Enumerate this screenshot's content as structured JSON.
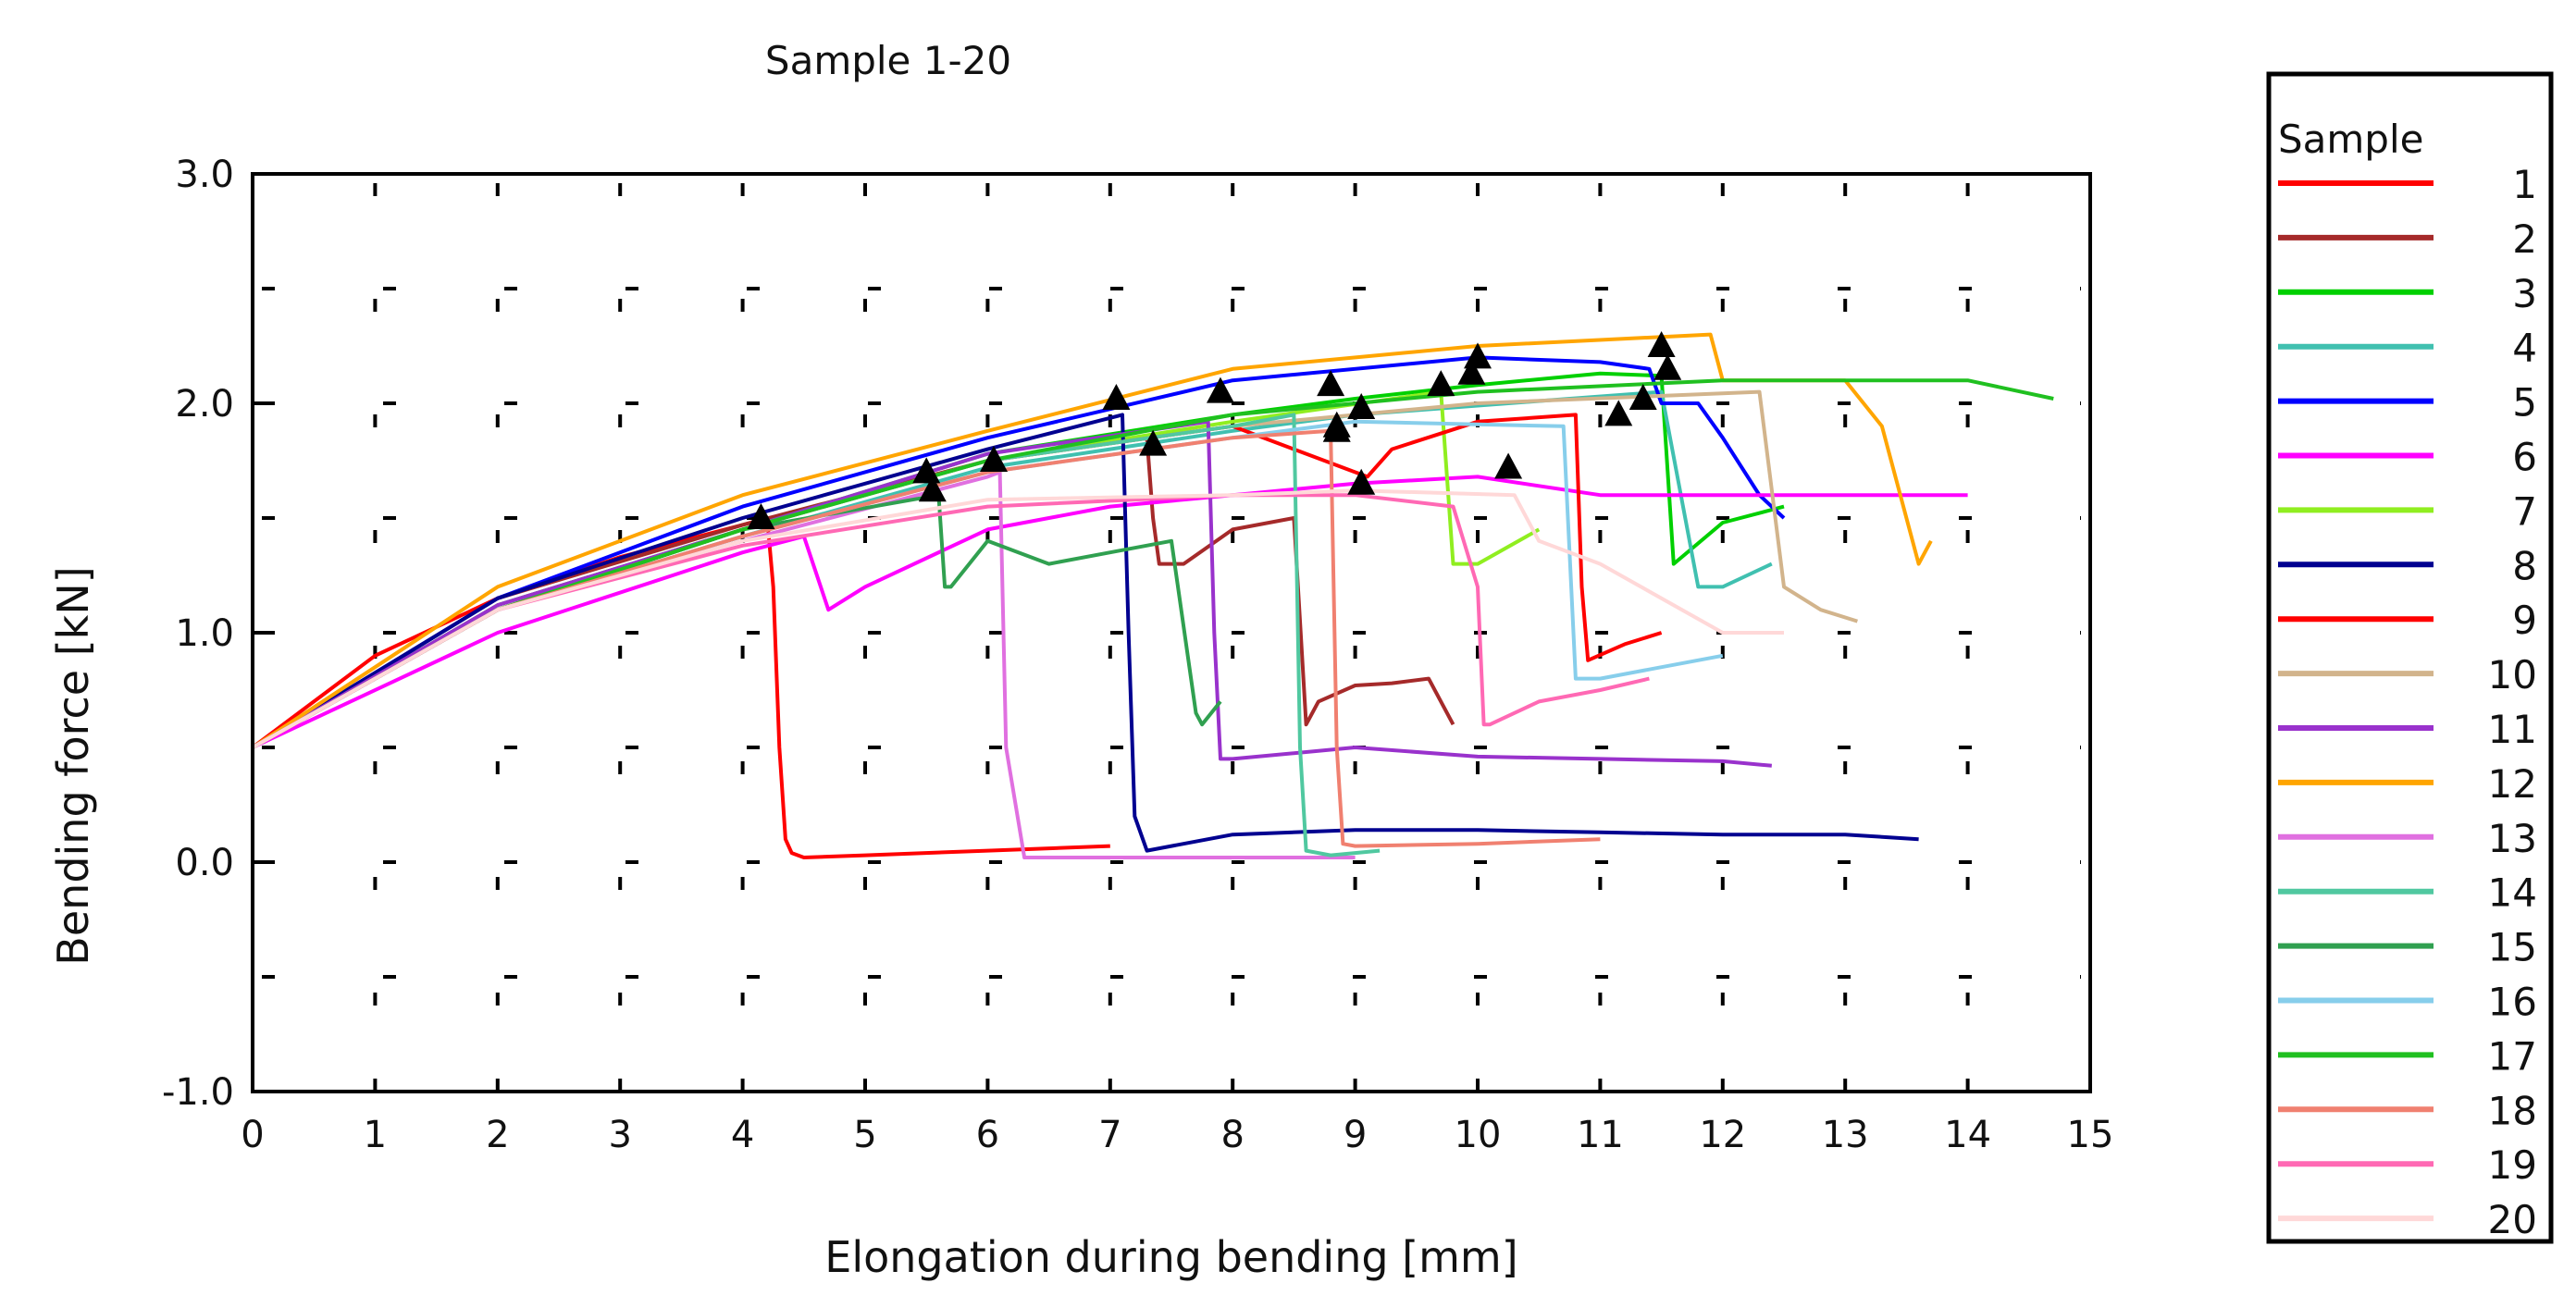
{
  "chart_data": {
    "type": "line",
    "title": "Sample 1-20",
    "xlabel": "Elongation during bending [mm]",
    "ylabel": "Bending force [kN]",
    "xlim": [
      0,
      15
    ],
    "ylim": [
      -1.0,
      3.0
    ],
    "x_ticks": [
      0,
      1,
      2,
      3,
      4,
      5,
      6,
      7,
      8,
      9,
      10,
      11,
      12,
      13,
      14,
      15
    ],
    "x_tick_labels": [
      "0",
      "1",
      "2",
      "3",
      "4",
      "5",
      "6",
      "7",
      "8",
      "9",
      "10",
      "11",
      "12",
      "13",
      "14",
      "15"
    ],
    "y_ticks": [
      -1.0,
      0.0,
      1.0,
      2.0,
      3.0
    ],
    "y_tick_labels": [
      "-1.0",
      "0.0",
      "1.0",
      "2.0",
      "3.0"
    ],
    "grid": "dotted",
    "legend": {
      "title": "Sample",
      "position": "right"
    },
    "series": [
      {
        "name": "1",
        "color": "#ff0000",
        "x": [
          0,
          1,
          2,
          3,
          4,
          4.2,
          4.25,
          4.3,
          4.35,
          4.4,
          4.5,
          5,
          6,
          7
        ],
        "y": [
          0.5,
          0.9,
          1.15,
          1.33,
          1.47,
          1.5,
          1.2,
          0.5,
          0.1,
          0.04,
          0.02,
          0.03,
          0.05,
          0.07
        ],
        "marker": [
          4.15,
          1.5
        ]
      },
      {
        "name": "2",
        "color": "#a52a2a",
        "x": [
          0,
          2,
          4,
          6,
          7.3,
          7.35,
          7.4,
          7.6,
          8,
          8.5,
          8.6,
          8.7,
          9,
          9.3,
          9.6,
          9.8
        ],
        "y": [
          0.5,
          1.15,
          1.47,
          1.75,
          1.85,
          1.5,
          1.3,
          1.3,
          1.45,
          1.5,
          0.6,
          0.7,
          0.77,
          0.78,
          0.8,
          0.6
        ],
        "marker": [
          7.35,
          1.82
        ]
      },
      {
        "name": "3",
        "color": "#00d000",
        "x": [
          0,
          2,
          4,
          6,
          8,
          9,
          10,
          11,
          11.5,
          11.6,
          12,
          12.5
        ],
        "y": [
          0.5,
          1.12,
          1.45,
          1.78,
          1.95,
          2.02,
          2.08,
          2.13,
          2.12,
          1.3,
          1.48,
          1.55
        ],
        "marker": [
          11.55,
          2.15
        ]
      },
      {
        "name": "4",
        "color": "#40c0b0",
        "x": [
          0,
          2,
          4,
          6,
          8,
          9,
          11.5,
          11.8,
          12,
          12.4
        ],
        "y": [
          0.5,
          1.1,
          1.42,
          1.72,
          1.88,
          1.95,
          2.05,
          1.2,
          1.2,
          1.3
        ],
        "marker": [
          11.35,
          2.02
        ]
      },
      {
        "name": "5",
        "color": "#0000ff",
        "x": [
          0,
          2,
          4,
          6,
          8,
          10,
          11,
          11.4,
          11.5,
          11.8,
          12,
          12.3,
          12.5
        ],
        "y": [
          0.5,
          1.15,
          1.55,
          1.85,
          2.1,
          2.2,
          2.18,
          2.15,
          2.0,
          2.0,
          1.85,
          1.6,
          1.5
        ],
        "marker": [
          11.5,
          2.25
        ]
      },
      {
        "name": "6",
        "color": "#ff00ff",
        "x": [
          0,
          2,
          4,
          4.5,
          4.7,
          5,
          6,
          7,
          8,
          9,
          10,
          11,
          12,
          13,
          14
        ],
        "y": [
          0.5,
          1.0,
          1.35,
          1.42,
          1.1,
          1.2,
          1.45,
          1.55,
          1.6,
          1.65,
          1.68,
          1.6,
          1.6,
          1.6,
          1.6
        ],
        "marker": [
          10.25,
          1.72
        ]
      },
      {
        "name": "7",
        "color": "#90ee20",
        "x": [
          0,
          2,
          4,
          6,
          8,
          9.7,
          9.8,
          10,
          10.5
        ],
        "y": [
          0.5,
          1.1,
          1.45,
          1.75,
          1.92,
          2.05,
          1.3,
          1.3,
          1.45
        ],
        "marker": [
          9.7,
          2.08
        ]
      },
      {
        "name": "8",
        "color": "#000090",
        "x": [
          0,
          2,
          4,
          6,
          7.1,
          7.15,
          7.2,
          7.3,
          8,
          9,
          10,
          11,
          12,
          13,
          13.6
        ],
        "y": [
          0.5,
          1.15,
          1.5,
          1.8,
          1.95,
          1.0,
          0.2,
          0.05,
          0.12,
          0.14,
          0.14,
          0.13,
          0.12,
          0.12,
          0.1
        ],
        "marker": [
          7.05,
          2.02
        ]
      },
      {
        "name": "9",
        "color": "#ff0000",
        "x": [
          0,
          2,
          4,
          6,
          8,
          9.1,
          9.3,
          10,
          10.8,
          10.85,
          10.9,
          11.2,
          11.5
        ],
        "y": [
          0.5,
          1.1,
          1.45,
          1.75,
          1.9,
          1.68,
          1.8,
          1.92,
          1.95,
          1.2,
          0.88,
          0.95,
          1.0
        ],
        "marker": [
          9.05,
          1.65
        ]
      },
      {
        "name": "10",
        "color": "#d2b48c",
        "x": [
          0,
          2,
          4,
          6,
          8,
          10,
          12.3,
          12.5,
          12.8,
          13.1
        ],
        "y": [
          0.5,
          1.1,
          1.45,
          1.75,
          1.9,
          2.0,
          2.05,
          1.2,
          1.1,
          1.05
        ],
        "marker": [
          11.15,
          1.95
        ]
      },
      {
        "name": "11",
        "color": "#9932cc",
        "x": [
          0,
          2,
          4,
          6,
          7.8,
          7.85,
          7.9,
          8,
          9,
          10,
          11,
          12,
          12.4
        ],
        "y": [
          0.5,
          1.12,
          1.45,
          1.78,
          1.92,
          1.0,
          0.45,
          0.45,
          0.5,
          0.46,
          0.45,
          0.44,
          0.42
        ],
        "marker": [
          7.9,
          2.05
        ]
      },
      {
        "name": "12",
        "color": "#ffa500",
        "x": [
          0,
          2,
          4,
          6,
          8,
          10,
          11.9,
          12,
          13,
          13.3,
          13.6,
          13.7
        ],
        "y": [
          0.5,
          1.2,
          1.6,
          1.88,
          2.15,
          2.25,
          2.3,
          2.1,
          2.1,
          1.9,
          1.3,
          1.4
        ],
        "marker": [
          10.0,
          2.2
        ]
      },
      {
        "name": "13",
        "color": "#e070e0",
        "x": [
          0,
          2,
          4,
          6,
          6.1,
          6.15,
          6.3,
          7,
          8,
          9
        ],
        "y": [
          0.5,
          1.1,
          1.4,
          1.68,
          1.7,
          0.5,
          0.02,
          0.02,
          0.02,
          0.02
        ],
        "marker": [
          6.05,
          1.75
        ]
      },
      {
        "name": "14",
        "color": "#50c8a0",
        "x": [
          0,
          2,
          4,
          6,
          8,
          8.5,
          8.55,
          8.6,
          8.8,
          9.2
        ],
        "y": [
          0.5,
          1.1,
          1.45,
          1.75,
          1.9,
          1.95,
          0.5,
          0.05,
          0.03,
          0.05
        ],
        "marker": [
          8.85,
          1.9
        ]
      },
      {
        "name": "15",
        "color": "#30a050",
        "x": [
          0,
          2,
          4,
          5.6,
          5.65,
          5.7,
          6,
          6.5,
          7,
          7.5,
          7.7,
          7.75,
          7.9
        ],
        "y": [
          0.5,
          1.1,
          1.45,
          1.6,
          1.2,
          1.2,
          1.4,
          1.3,
          1.35,
          1.4,
          0.65,
          0.6,
          0.7
        ],
        "marker": [
          5.55,
          1.62
        ]
      },
      {
        "name": "16",
        "color": "#87ceeb",
        "x": [
          0,
          2,
          4,
          6,
          8,
          9,
          10.7,
          10.8,
          11,
          12
        ],
        "y": [
          0.5,
          1.1,
          1.42,
          1.7,
          1.85,
          1.92,
          1.9,
          0.8,
          0.8,
          0.9
        ],
        "marker": [
          8.85,
          1.88
        ]
      },
      {
        "name": "17",
        "color": "#20c020",
        "x": [
          0,
          2,
          4,
          6,
          8,
          10,
          12,
          14,
          14.7
        ],
        "y": [
          0.5,
          1.1,
          1.45,
          1.75,
          1.95,
          2.05,
          2.1,
          2.1,
          2.02
        ],
        "marker": [
          9.05,
          1.98
        ]
      },
      {
        "name": "18",
        "color": "#f08070",
        "x": [
          0,
          2,
          4,
          6,
          8,
          8.8,
          8.85,
          8.9,
          9,
          10,
          11
        ],
        "y": [
          0.5,
          1.1,
          1.42,
          1.7,
          1.85,
          1.88,
          0.5,
          0.08,
          0.07,
          0.08,
          0.1
        ],
        "marker": [
          5.5,
          1.7
        ]
      },
      {
        "name": "19",
        "color": "#ff69b4",
        "x": [
          0,
          2,
          4,
          6,
          8,
          9,
          9.8,
          10.0,
          10.05,
          10.1,
          10.5,
          11,
          11.4
        ],
        "y": [
          0.5,
          1.1,
          1.38,
          1.55,
          1.6,
          1.6,
          1.55,
          1.2,
          0.6,
          0.6,
          0.7,
          0.75,
          0.8
        ],
        "marker": [
          8.8,
          2.08
        ]
      },
      {
        "name": "20",
        "color": "#ffd8d8",
        "x": [
          0,
          2,
          4,
          6,
          8,
          9,
          10.3,
          10.5,
          11,
          12,
          12.5
        ],
        "y": [
          0.5,
          1.1,
          1.4,
          1.58,
          1.6,
          1.62,
          1.6,
          1.4,
          1.3,
          1.0,
          1.0
        ],
        "marker": [
          9.95,
          2.13
        ]
      }
    ]
  }
}
